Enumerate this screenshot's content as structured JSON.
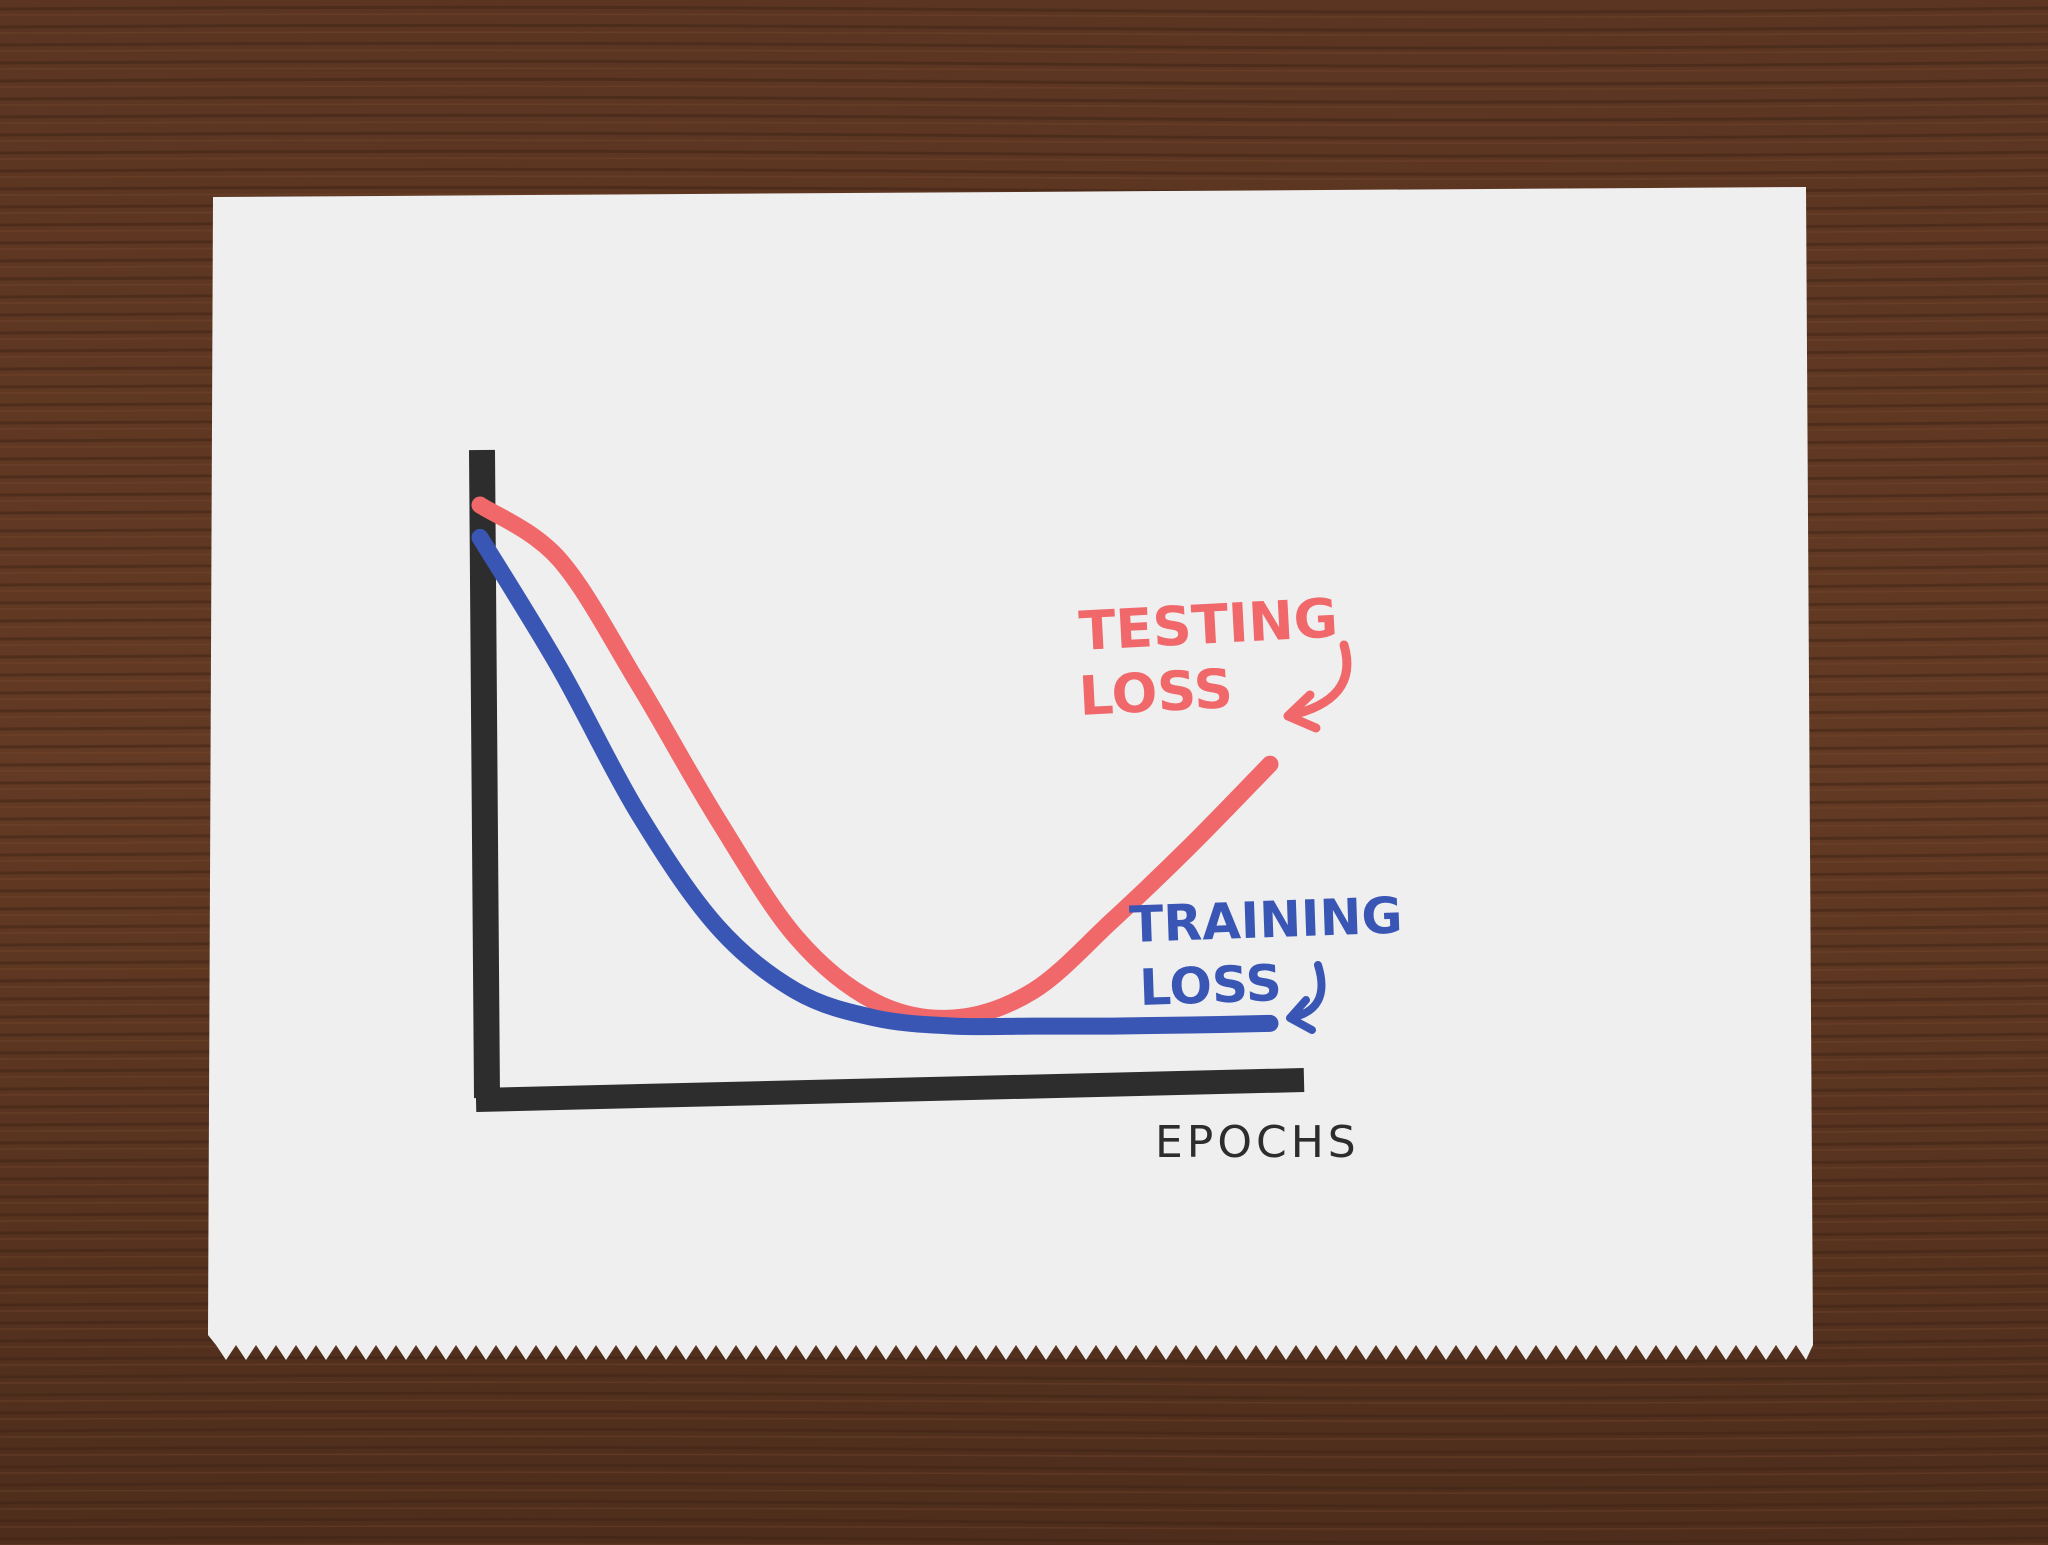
{
  "chart_data": {
    "type": "line",
    "title": "",
    "xlabel": "EPOCHS",
    "ylabel": "",
    "x": [
      0,
      0.1,
      0.2,
      0.3,
      0.4,
      0.5,
      0.6,
      0.7,
      0.8,
      0.9,
      1.0
    ],
    "series": [
      {
        "name": "TESTING LOSS",
        "color": "#f0686a",
        "values": [
          1.0,
          0.9,
          0.67,
          0.42,
          0.2,
          0.08,
          0.05,
          0.1,
          0.23,
          0.37,
          0.52
        ]
      },
      {
        "name": "TRAINING LOSS",
        "color": "#3a56b4",
        "values": [
          0.94,
          0.7,
          0.43,
          0.22,
          0.1,
          0.05,
          0.035,
          0.035,
          0.035,
          0.037,
          0.04
        ]
      }
    ],
    "xlim": [
      0,
      1.0
    ],
    "ylim": [
      0,
      1.0
    ],
    "grid": false,
    "legend": "inline labels with arrows",
    "axis_color": "#2d2d2d"
  },
  "colors": {
    "background": "#5a3420",
    "paper": "#efeff0"
  }
}
